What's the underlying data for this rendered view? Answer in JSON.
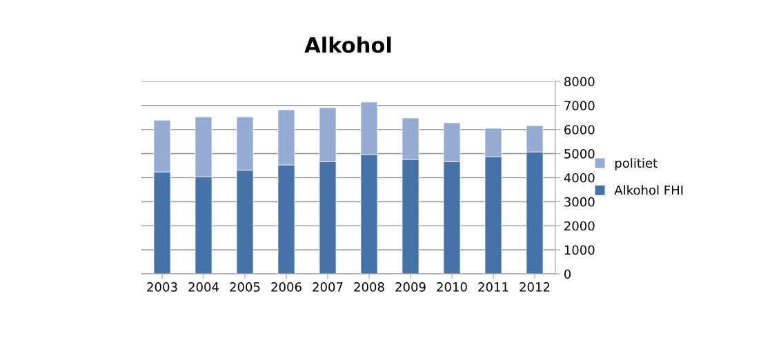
{
  "chart_data": {
    "type": "bar",
    "title": "Alkohol",
    "stacked": true,
    "categories": [
      "2003",
      "2004",
      "2005",
      "2006",
      "2007",
      "2008",
      "2009",
      "2010",
      "2011",
      "2012"
    ],
    "series": [
      {
        "name": "Alkohol FHI",
        "color": "#4572a7",
        "values": [
          4240,
          4040,
          4310,
          4530,
          4670,
          4960,
          4760,
          4670,
          4870,
          5070
        ]
      },
      {
        "name": "politiet",
        "color": "#95abd1",
        "values": [
          2150,
          2480,
          2210,
          2290,
          2240,
          2180,
          1720,
          1610,
          1180,
          1090
        ]
      }
    ],
    "ylim": [
      0,
      8000
    ],
    "yticks": [
      0,
      1000,
      2000,
      3000,
      4000,
      5000,
      6000,
      7000,
      8000
    ],
    "grid": "y",
    "legend": "right"
  }
}
